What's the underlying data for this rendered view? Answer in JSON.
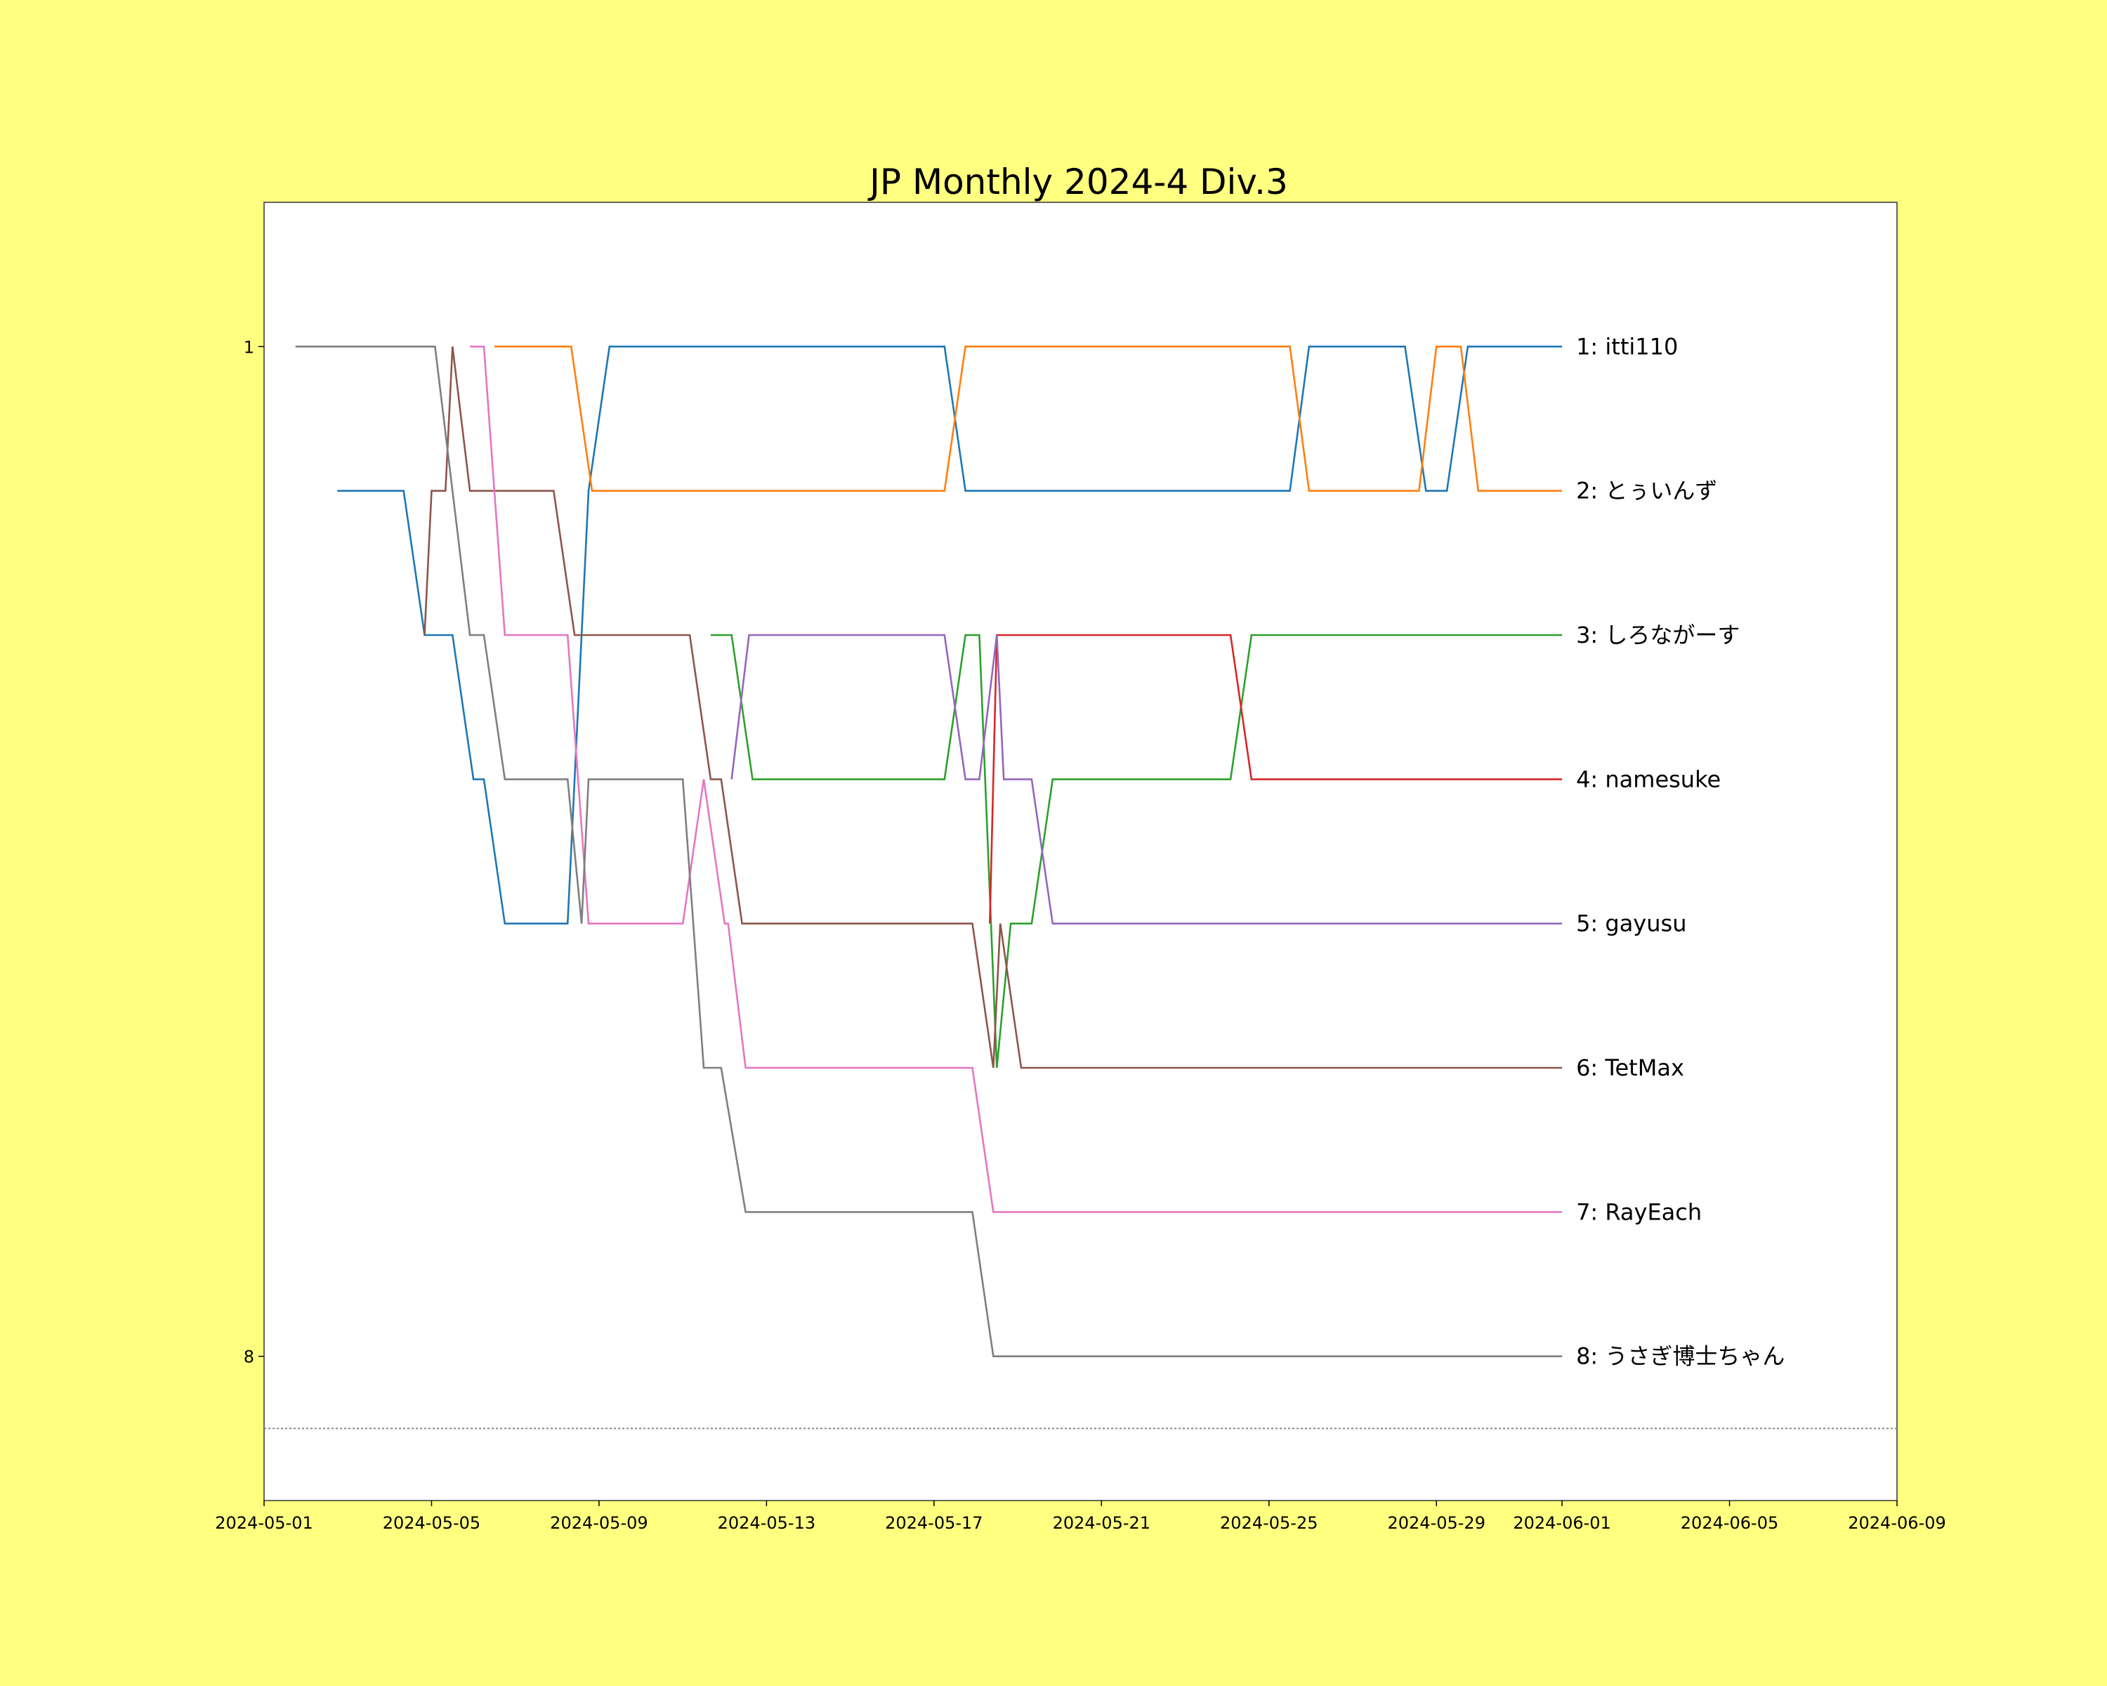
{
  "chart_data": {
    "type": "line",
    "title": "JP Monthly 2024-4 Div.3",
    "xlabel": "",
    "ylabel": "",
    "x_axis_type": "date",
    "xlim": [
      "2024-05-01",
      "2024-06-09"
    ],
    "ylim": [
      9,
      0
    ],
    "y_inverted": true,
    "y_ticks": [
      1,
      8
    ],
    "x_ticks": [
      "2024-05-01",
      "2024-05-05",
      "2024-05-09",
      "2024-05-13",
      "2024-05-17",
      "2024-05-21",
      "2024-05-25",
      "2024-05-29",
      "2024-06-01",
      "2024-06-05",
      "2024-06-09"
    ],
    "reference_line": {
      "y": 8.5,
      "style": "dotted"
    },
    "grid": false,
    "series": [
      {
        "name": "1: itti110",
        "color": "#1f77b4",
        "points": [
          [
            "2024-05-02T18:00",
            2
          ],
          [
            "2024-05-04T08:00",
            2
          ],
          [
            "2024-05-04T20:00",
            3
          ],
          [
            "2024-05-05T12:00",
            3
          ],
          [
            "2024-05-06T00:00",
            4
          ],
          [
            "2024-05-06T06:00",
            4
          ],
          [
            "2024-05-06T18:00",
            5
          ],
          [
            "2024-05-08T06:00",
            5
          ],
          [
            "2024-05-08T18:00",
            2
          ],
          [
            "2024-05-09T06:00",
            1
          ],
          [
            "2024-05-17T06:00",
            1
          ],
          [
            "2024-05-17T18:00",
            2
          ],
          [
            "2024-05-25T12:00",
            2
          ],
          [
            "2024-05-25T23:00",
            1
          ],
          [
            "2024-05-28T06:00",
            1
          ],
          [
            "2024-05-28T18:00",
            2
          ],
          [
            "2024-05-29T06:00",
            2
          ],
          [
            "2024-05-29T18:00",
            1
          ],
          [
            "2024-06-01T00:00",
            1
          ]
        ]
      },
      {
        "name": "2: とぅいんず",
        "color": "#ff7f0e",
        "points": [
          [
            "2024-05-06T12:00",
            1
          ],
          [
            "2024-05-08T08:00",
            1
          ],
          [
            "2024-05-08T20:00",
            2
          ],
          [
            "2024-05-17T06:00",
            2
          ],
          [
            "2024-05-17T18:00",
            1
          ],
          [
            "2024-05-25T12:00",
            1
          ],
          [
            "2024-05-25T23:00",
            2
          ],
          [
            "2024-05-28T14:00",
            2
          ],
          [
            "2024-05-29T00:00",
            1
          ],
          [
            "2024-05-29T14:00",
            1
          ],
          [
            "2024-05-30T00:00",
            2
          ],
          [
            "2024-06-01T00:00",
            2
          ]
        ]
      },
      {
        "name": "3: しろながーす",
        "color": "#2ca02c",
        "points": [
          [
            "2024-05-11T16:00",
            3
          ],
          [
            "2024-05-12T04:00",
            3
          ],
          [
            "2024-05-12T16:00",
            4
          ],
          [
            "2024-05-17T06:00",
            4
          ],
          [
            "2024-05-17T18:00",
            3
          ],
          [
            "2024-05-18T02:00",
            3
          ],
          [
            "2024-05-18T12:00",
            6
          ],
          [
            "2024-05-18T20:00",
            5
          ],
          [
            "2024-05-19T08:00",
            5
          ],
          [
            "2024-05-19T20:00",
            4
          ],
          [
            "2024-05-24T02:00",
            4
          ],
          [
            "2024-05-24T14:00",
            3
          ],
          [
            "2024-06-01T00:00",
            3
          ]
        ]
      },
      {
        "name": "4: namesuke",
        "color": "#d62728",
        "points": [
          [
            "2024-05-18T08:00",
            5
          ],
          [
            "2024-05-18T12:00",
            3
          ],
          [
            "2024-05-24T02:00",
            3
          ],
          [
            "2024-05-24T14:00",
            4
          ],
          [
            "2024-06-01T00:00",
            4
          ]
        ]
      },
      {
        "name": "5: gayusu",
        "color": "#9467bd",
        "points": [
          [
            "2024-05-12T04:00",
            4
          ],
          [
            "2024-05-12T14:00",
            3
          ],
          [
            "2024-05-17T06:00",
            3
          ],
          [
            "2024-05-17T18:00",
            4
          ],
          [
            "2024-05-18T02:00",
            4
          ],
          [
            "2024-05-18T12:00",
            3
          ],
          [
            "2024-05-18T16:00",
            4
          ],
          [
            "2024-05-19T08:00",
            4
          ],
          [
            "2024-05-19T20:00",
            5
          ],
          [
            "2024-06-01T00:00",
            5
          ]
        ]
      },
      {
        "name": "6: TetMax",
        "color": "#8c564b",
        "points": [
          [
            "2024-05-04T20:00",
            3
          ],
          [
            "2024-05-05T00:00",
            2
          ],
          [
            "2024-05-05T08:00",
            2
          ],
          [
            "2024-05-05T12:00",
            1
          ],
          [
            "2024-05-05T22:00",
            2
          ],
          [
            "2024-05-07T22:00",
            2
          ],
          [
            "2024-05-08T10:00",
            3
          ],
          [
            "2024-05-11T04:00",
            3
          ],
          [
            "2024-05-11T16:00",
            4
          ],
          [
            "2024-05-11T22:00",
            4
          ],
          [
            "2024-05-12T10:00",
            5
          ],
          [
            "2024-05-17T22:00",
            5
          ],
          [
            "2024-05-18T10:00",
            6
          ],
          [
            "2024-05-18T14:00",
            5
          ],
          [
            "2024-05-19T02:00",
            6
          ],
          [
            "2024-06-01T00:00",
            6
          ]
        ]
      },
      {
        "name": "7: RayEach",
        "color": "#e377c2",
        "points": [
          [
            "2024-05-05T22:00",
            1
          ],
          [
            "2024-05-06T06:00",
            1
          ],
          [
            "2024-05-06T18:00",
            3
          ],
          [
            "2024-05-08T06:00",
            3
          ],
          [
            "2024-05-08T18:00",
            5
          ],
          [
            "2024-05-11T00:00",
            5
          ],
          [
            "2024-05-11T12:00",
            4
          ],
          [
            "2024-05-12T00:00",
            5
          ],
          [
            "2024-05-12T02:00",
            5
          ],
          [
            "2024-05-12T12:00",
            6
          ],
          [
            "2024-05-17T22:00",
            6
          ],
          [
            "2024-05-18T10:00",
            7
          ],
          [
            "2024-06-01T00:00",
            7
          ]
        ]
      },
      {
        "name": "8: うさぎ博士ちゃん",
        "color": "#7f7f7f",
        "points": [
          [
            "2024-05-01T18:00",
            1
          ],
          [
            "2024-05-05T02:00",
            1
          ],
          [
            "2024-05-05T22:00",
            3
          ],
          [
            "2024-05-06T06:00",
            3
          ],
          [
            "2024-05-06T18:00",
            4
          ],
          [
            "2024-05-08T06:00",
            4
          ],
          [
            "2024-05-08T14:00",
            5
          ],
          [
            "2024-05-08T18:00",
            4
          ],
          [
            "2024-05-11T00:00",
            4
          ],
          [
            "2024-05-11T12:00",
            6
          ],
          [
            "2024-05-11T22:00",
            6
          ],
          [
            "2024-05-12T12:00",
            7
          ],
          [
            "2024-05-17T22:00",
            7
          ],
          [
            "2024-05-18T10:00",
            8
          ],
          [
            "2024-06-01T00:00",
            8
          ]
        ]
      }
    ]
  }
}
